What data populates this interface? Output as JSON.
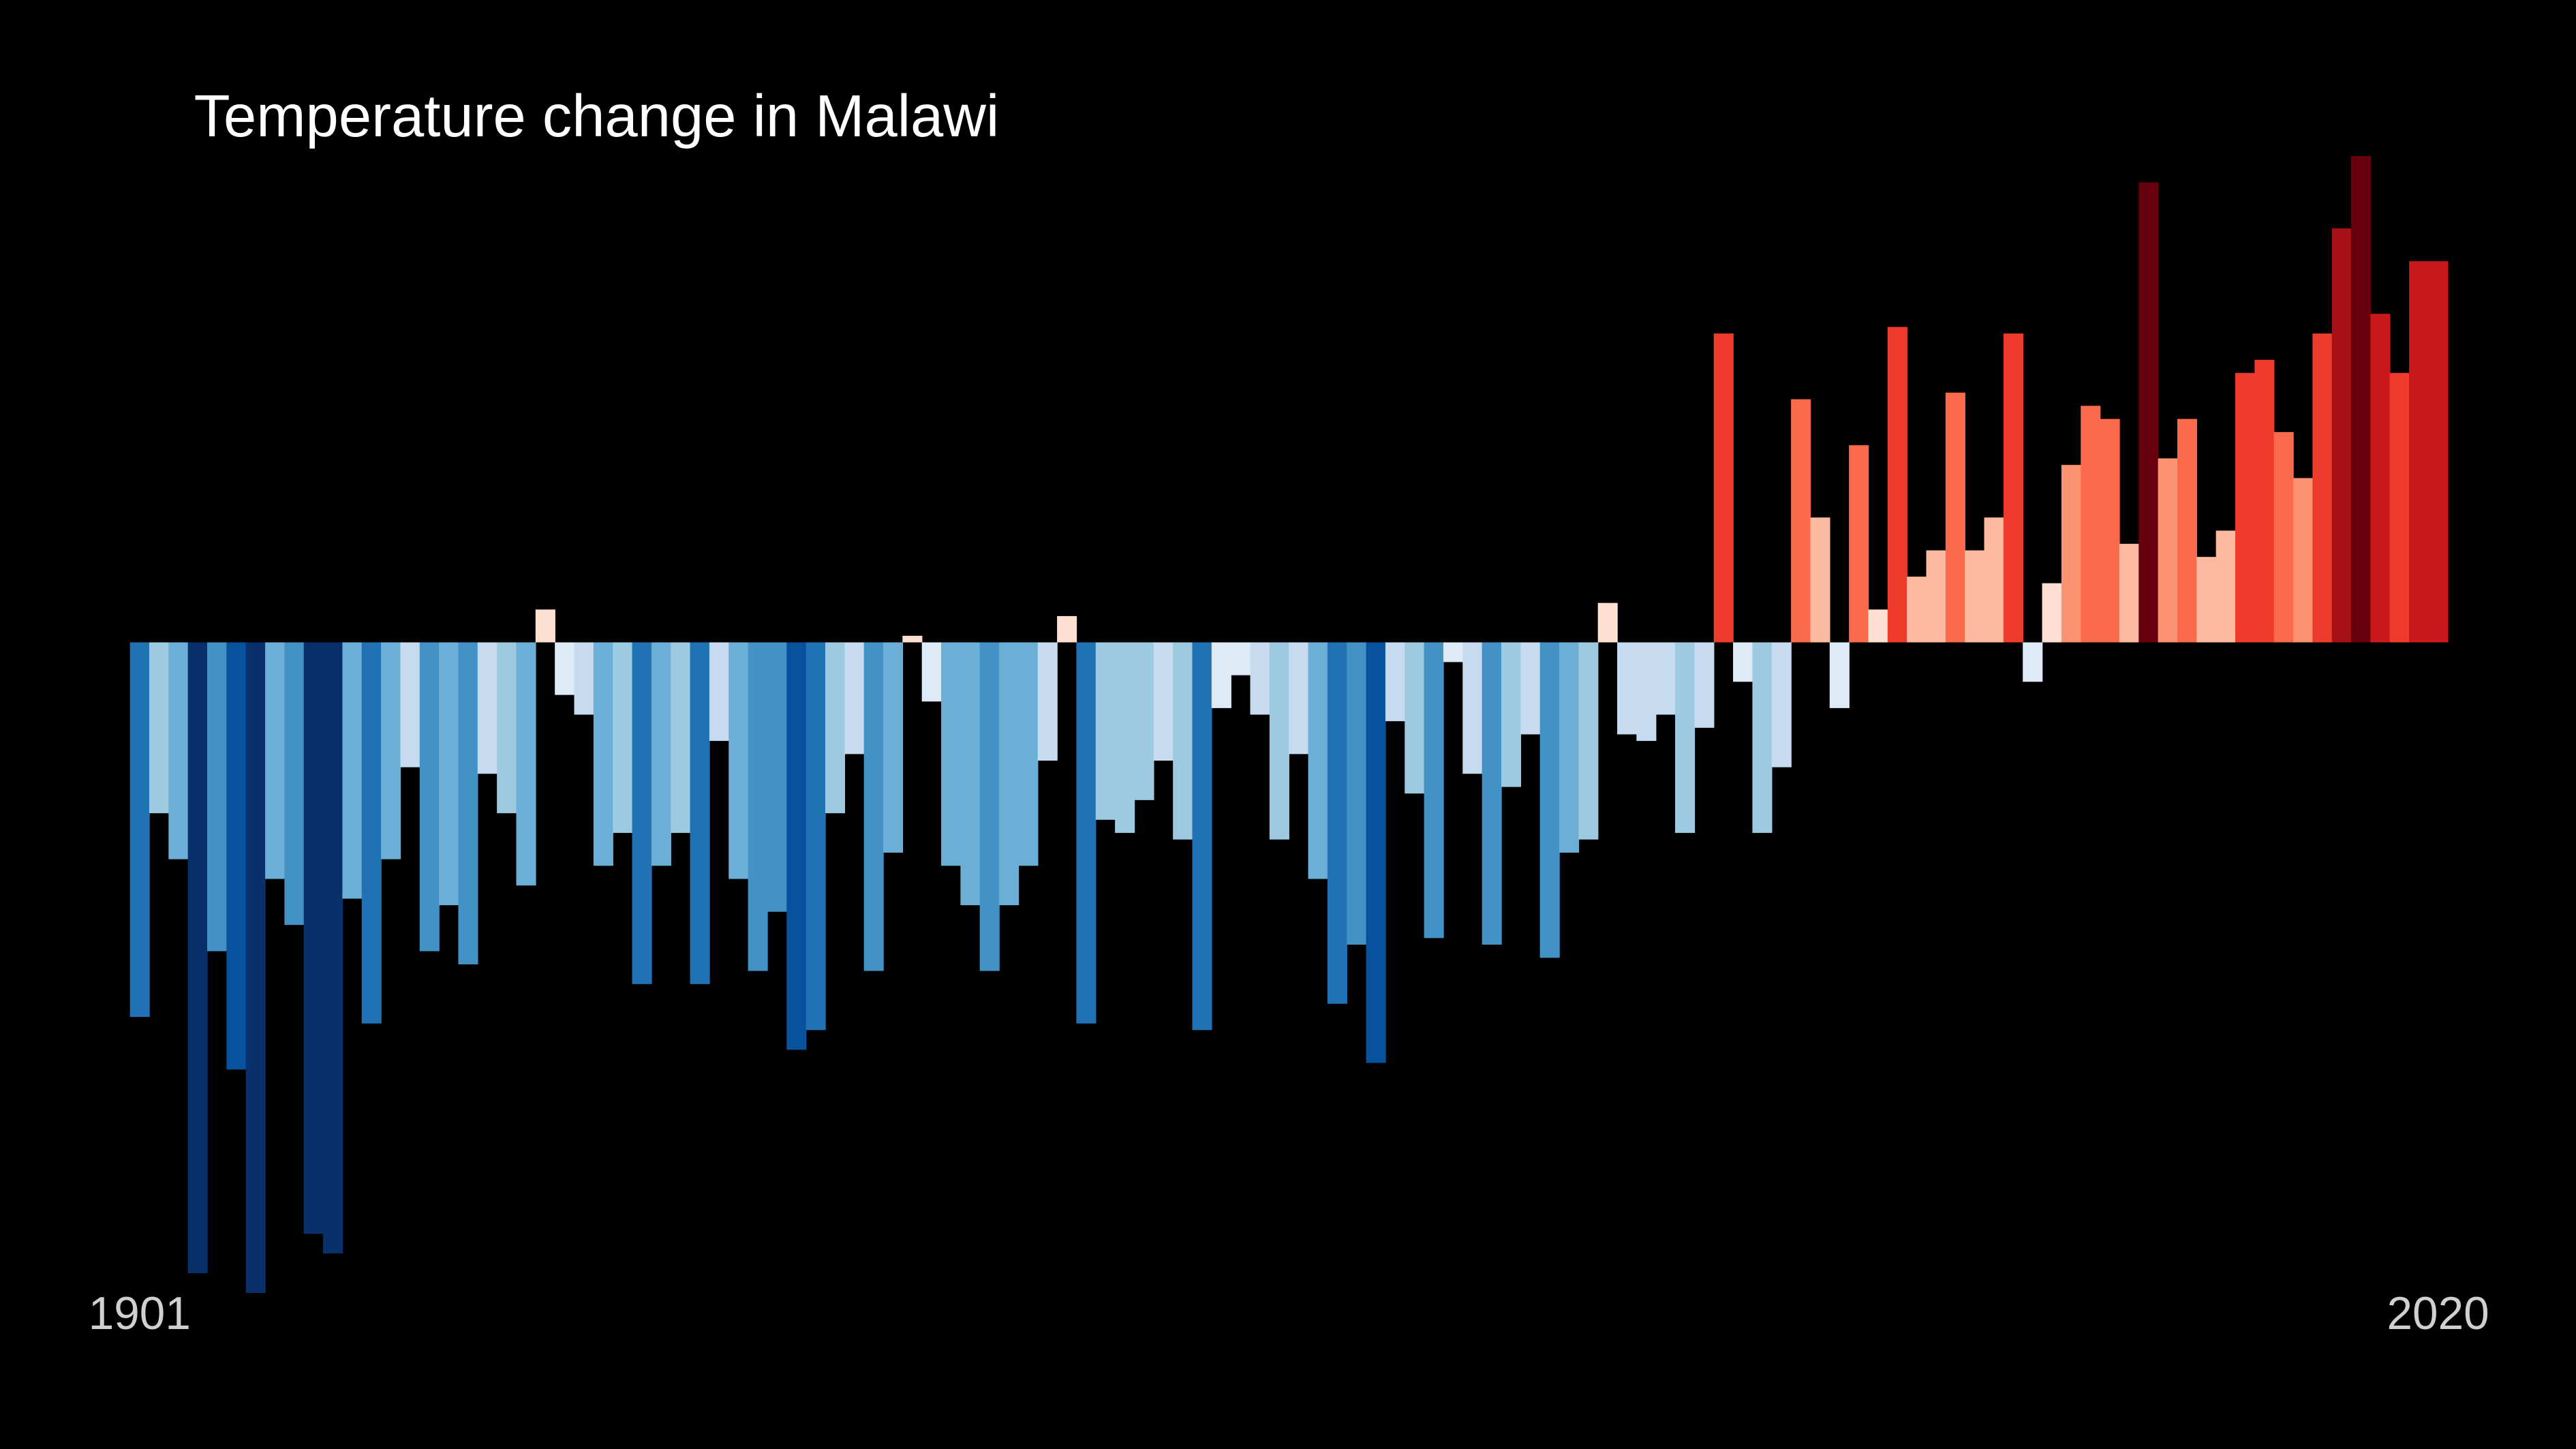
{
  "chart_data": {
    "type": "bar",
    "title": "Temperature change in Malawi",
    "categories": [
      "1901",
      null,
      null,
      null,
      null,
      null,
      null,
      null,
      null,
      null,
      null,
      null,
      null,
      null,
      null,
      null,
      null,
      null,
      null,
      null,
      null,
      null,
      null,
      null,
      null,
      null,
      null,
      null,
      null,
      null,
      null,
      null,
      null,
      null,
      null,
      null,
      null,
      null,
      null,
      null,
      null,
      null,
      null,
      null,
      null,
      null,
      null,
      null,
      null,
      null,
      null,
      null,
      null,
      null,
      null,
      null,
      null,
      null,
      null,
      null,
      null,
      null,
      null,
      null,
      null,
      null,
      null,
      null,
      null,
      null,
      null,
      null,
      null,
      null,
      null,
      null,
      null,
      null,
      null,
      null,
      null,
      null,
      null,
      null,
      null,
      null,
      null,
      null,
      null,
      null,
      null,
      null,
      null,
      null,
      null,
      null,
      null,
      null,
      null,
      null,
      null,
      null,
      null,
      null,
      null,
      null,
      null,
      null,
      null,
      null,
      null,
      null,
      null,
      null,
      null,
      null,
      null,
      null,
      null,
      "2020"
    ],
    "values": [
      -0.57,
      -0.26,
      -0.33,
      -0.96,
      -0.47,
      -0.65,
      -0.99,
      -0.36,
      -0.43,
      -0.9,
      -0.93,
      -0.39,
      -0.58,
      -0.33,
      -0.19,
      -0.47,
      -0.4,
      -0.49,
      -0.2,
      -0.26,
      -0.37,
      0.05,
      -0.08,
      -0.11,
      -0.34,
      -0.29,
      -0.52,
      -0.34,
      -0.29,
      -0.52,
      -0.15,
      -0.36,
      -0.5,
      -0.41,
      -0.62,
      -0.59,
      -0.26,
      -0.17,
      -0.5,
      -0.32,
      0.01,
      -0.09,
      -0.34,
      -0.4,
      -0.5,
      -0.4,
      -0.34,
      -0.18,
      0.04,
      -0.58,
      -0.27,
      -0.29,
      -0.24,
      -0.18,
      -0.3,
      -0.59,
      -0.1,
      -0.05,
      -0.11,
      -0.3,
      -0.17,
      -0.36,
      -0.55,
      -0.46,
      -0.64,
      -0.12,
      -0.23,
      -0.45,
      -0.03,
      -0.2,
      -0.46,
      -0.22,
      -0.14,
      -0.48,
      -0.32,
      -0.3,
      0.06,
      -0.14,
      -0.15,
      -0.11,
      -0.29,
      -0.13,
      0.47,
      -0.06,
      -0.29,
      -0.19,
      0.37,
      0.19,
      -0.1,
      0.3,
      0.05,
      0.48,
      0.1,
      0.14,
      0.38,
      0.14,
      0.19,
      0.47,
      -0.06,
      0.09,
      0.27,
      0.36,
      0.34,
      0.15,
      0.7,
      0.28,
      0.34,
      0.13,
      0.17,
      0.41,
      0.43,
      0.32,
      0.25,
      0.47,
      0.63,
      0.74,
      0.5,
      0.41,
      0.58,
      0.58
    ],
    "ylim": [
      -1.0,
      0.75
    ],
    "colormap": [
      "#08306b",
      "#08519c",
      "#2171b5",
      "#4292c6",
      "#6baed6",
      "#9ecae1",
      "#c6dbef",
      "#deebf7",
      "#fee0d2",
      "#fcbba1",
      "#fc9272",
      "#fb6a4a",
      "#ef3b2c",
      "#cb181d",
      "#a50f15",
      "#67000d"
    ],
    "clim": [
      -0.8,
      0.8
    ]
  }
}
